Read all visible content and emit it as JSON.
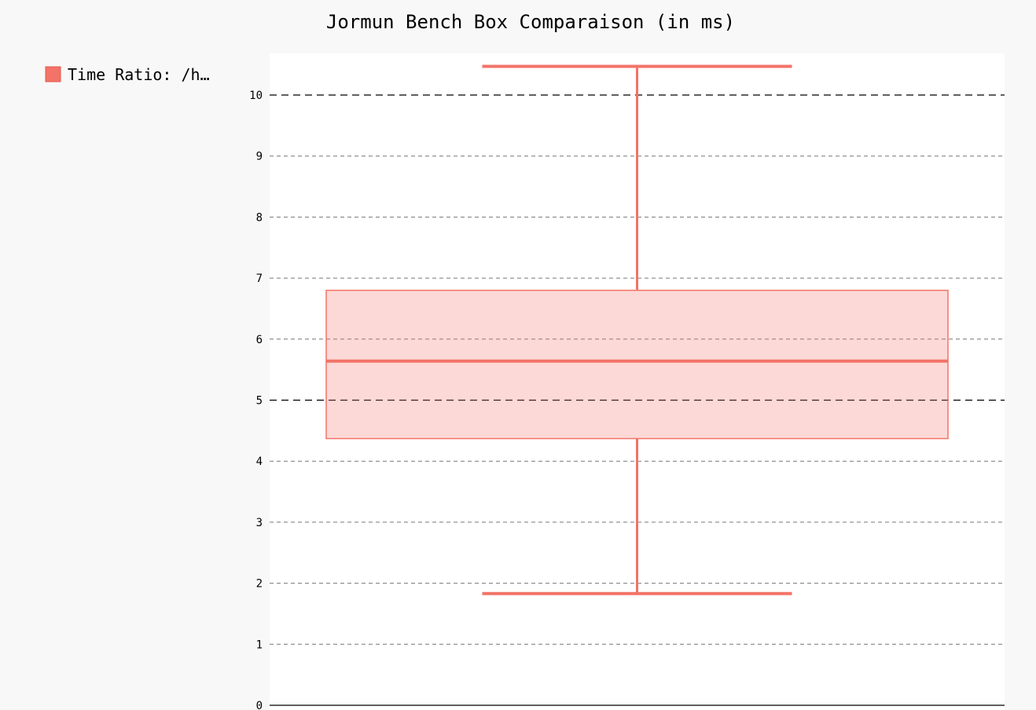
{
  "chart_data": {
    "type": "box",
    "title": "Jormun Bench Box Comparaison (in ms)",
    "xlabel": "",
    "ylabel": "",
    "ylim": [
      0,
      10.6
    ],
    "yticks": [
      0,
      1,
      2,
      3,
      4,
      5,
      6,
      7,
      8,
      9,
      10
    ],
    "major_yticks": [
      0,
      5,
      10
    ],
    "grid": true,
    "legend_position": "top-left",
    "series": [
      {
        "name": "Time Ratio: /h…",
        "color": "#f37368",
        "min": 1.83,
        "q1": 4.37,
        "median": 5.64,
        "q3": 6.8,
        "max": 10.47
      }
    ]
  }
}
